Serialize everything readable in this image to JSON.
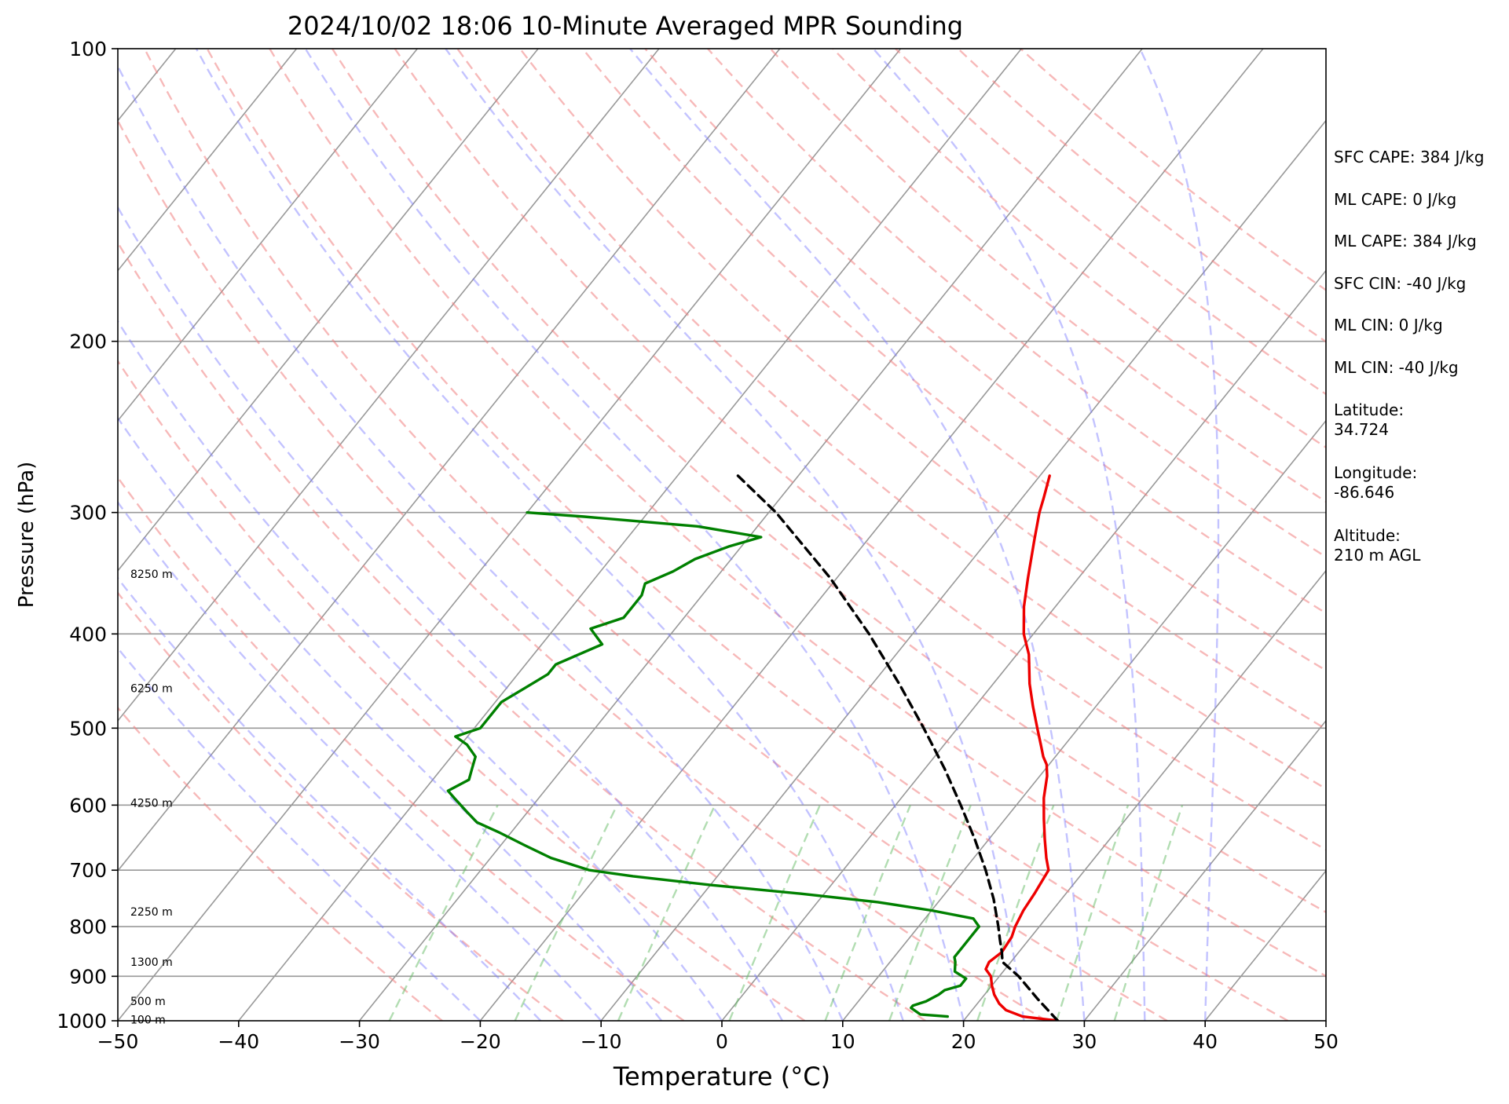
{
  "chart_data": {
    "type": "line",
    "title": "2024/10/02 18:06 10-Minute Averaged MPR Sounding",
    "xlabel": "Temperature (°C)",
    "ylabel": "Pressure (hPa)",
    "xlim": [
      -50,
      50
    ],
    "ylim": [
      1000,
      100
    ],
    "y_scale": "log",
    "x_ticks": [
      -50,
      -40,
      -30,
      -20,
      -10,
      0,
      10,
      20,
      30,
      40,
      50
    ],
    "y_ticks": [
      100,
      200,
      300,
      400,
      500,
      600,
      700,
      800,
      900,
      1000
    ],
    "grid": true,
    "skew_t": true,
    "series": [
      {
        "role": "temperature",
        "color": "#ee0000",
        "points": [
          [
            1000,
            27.8
          ],
          [
            990,
            24.6
          ],
          [
            975,
            22.8
          ],
          [
            960,
            21.8
          ],
          [
            940,
            20.8
          ],
          [
            920,
            20.0
          ],
          [
            900,
            19.3
          ],
          [
            885,
            18.4
          ],
          [
            870,
            18.2
          ],
          [
            850,
            18.6
          ],
          [
            820,
            18.4
          ],
          [
            800,
            18.0
          ],
          [
            770,
            17.6
          ],
          [
            740,
            17.4
          ],
          [
            700,
            17.0
          ],
          [
            680,
            16.0
          ],
          [
            650,
            14.6
          ],
          [
            620,
            13.2
          ],
          [
            590,
            11.8
          ],
          [
            560,
            10.6
          ],
          [
            545,
            9.8
          ],
          [
            535,
            9.0
          ],
          [
            520,
            8.0
          ],
          [
            500,
            6.6
          ],
          [
            475,
            4.8
          ],
          [
            450,
            3.0
          ],
          [
            420,
            1.0
          ],
          [
            400,
            -0.8
          ],
          [
            375,
            -2.6
          ],
          [
            350,
            -4.2
          ],
          [
            320,
            -6.2
          ],
          [
            300,
            -7.6
          ],
          [
            290,
            -8.2
          ],
          [
            275,
            -9.2
          ]
        ]
      },
      {
        "role": "dewpoint",
        "color": "#008000",
        "points": [
          [
            990,
            18.4
          ],
          [
            985,
            16.0
          ],
          [
            970,
            14.8
          ],
          [
            965,
            14.8
          ],
          [
            955,
            15.6
          ],
          [
            940,
            16.2
          ],
          [
            930,
            16.4
          ],
          [
            920,
            17.4
          ],
          [
            905,
            17.4
          ],
          [
            890,
            16.0
          ],
          [
            870,
            15.4
          ],
          [
            860,
            15.0
          ],
          [
            840,
            15.0
          ],
          [
            820,
            15.0
          ],
          [
            800,
            15.0
          ],
          [
            785,
            14.0
          ],
          [
            770,
            10.0
          ],
          [
            755,
            5.0
          ],
          [
            740,
            -2.0
          ],
          [
            725,
            -10.0
          ],
          [
            710,
            -17.0
          ],
          [
            700,
            -21.0
          ],
          [
            680,
            -25.0
          ],
          [
            660,
            -28.0
          ],
          [
            640,
            -31.0
          ],
          [
            625,
            -33.5
          ],
          [
            610,
            -35.0
          ],
          [
            590,
            -37.0
          ],
          [
            580,
            -38.0
          ],
          [
            565,
            -37.0
          ],
          [
            550,
            -37.5
          ],
          [
            535,
            -38.0
          ],
          [
            520,
            -39.5
          ],
          [
            510,
            -41.0
          ],
          [
            500,
            -39.5
          ],
          [
            485,
            -39.5
          ],
          [
            470,
            -39.5
          ],
          [
            455,
            -38.5
          ],
          [
            440,
            -37.5
          ],
          [
            430,
            -37.5
          ],
          [
            410,
            -35.0
          ],
          [
            395,
            -37.0
          ],
          [
            385,
            -35.0
          ],
          [
            375,
            -35.0
          ],
          [
            365,
            -35.0
          ],
          [
            355,
            -35.5
          ],
          [
            345,
            -34.0
          ],
          [
            335,
            -33.0
          ],
          [
            325,
            -31.0
          ],
          [
            318,
            -29.0
          ],
          [
            310,
            -35.0
          ],
          [
            303,
            -45.0
          ],
          [
            300,
            -50.0
          ]
        ]
      },
      {
        "role": "parcel",
        "color": "#000000",
        "dash": true,
        "points": [
          [
            1000,
            27.8
          ],
          [
            950,
            24.7
          ],
          [
            900,
            21.6
          ],
          [
            870,
            19.3
          ],
          [
            850,
            18.6
          ],
          [
            825,
            17.6
          ],
          [
            800,
            16.6
          ],
          [
            750,
            14.4
          ],
          [
            700,
            11.8
          ],
          [
            650,
            8.8
          ],
          [
            600,
            5.4
          ],
          [
            550,
            1.6
          ],
          [
            500,
            -2.8
          ],
          [
            450,
            -7.8
          ],
          [
            400,
            -13.6
          ],
          [
            350,
            -20.6
          ],
          [
            300,
            -29.4
          ],
          [
            275,
            -35.0
          ]
        ]
      }
    ],
    "dry_adiabats_theta_K": [
      250,
      260,
      270,
      280,
      290,
      300,
      310,
      320,
      330,
      340,
      350,
      360,
      370,
      380,
      390,
      400,
      410,
      420,
      430,
      440,
      450
    ],
    "moist_adiabats_start_C": [
      -20,
      -15,
      -10,
      -5,
      0,
      5,
      10,
      15,
      20,
      25,
      30,
      35,
      40
    ],
    "mixing_ratio_lines_gkg": [
      0.4,
      1,
      2,
      4,
      7,
      10,
      16,
      24,
      32
    ],
    "height_labels": [
      {
        "p": 347,
        "text": "8250 m"
      },
      {
        "p": 455,
        "text": "6250 m"
      },
      {
        "p": 597,
        "text": "4250 m"
      },
      {
        "p": 772,
        "text": "2250 m"
      },
      {
        "p": 870,
        "text": "1300 m"
      },
      {
        "p": 955,
        "text": "500 m"
      },
      {
        "p": 997,
        "text": "100 m"
      }
    ]
  },
  "info": [
    {
      "key": "sfc_cape",
      "text": "SFC CAPE: 384 J/kg"
    },
    {
      "key": "ml_cape_1",
      "text": "ML CAPE: 0 J/kg"
    },
    {
      "key": "ml_cape_2",
      "text": "ML CAPE: 384 J/kg"
    },
    {
      "key": "sfc_cin",
      "text": "SFC CIN: -40 J/kg"
    },
    {
      "key": "ml_cin_1",
      "text": "ML CIN: 0 J/kg"
    },
    {
      "key": "ml_cin_2",
      "text": "ML CIN: -40 J/kg"
    },
    {
      "key": "latitude",
      "label": "Latitude:",
      "value": "34.724"
    },
    {
      "key": "longitude",
      "label": "Longitude:",
      "value": "-86.646"
    },
    {
      "key": "altitude",
      "label": "Altitude:",
      "value": "210 m AGL"
    }
  ],
  "colors": {
    "temperature": "#ee0000",
    "dewpoint": "#008000",
    "parcel": "#000000",
    "dry_adiabat": "#f08080",
    "moist_adiabat": "#7b7bff",
    "mixing_ratio": "#66bb66",
    "isotherm": "#999999",
    "isobar": "#999999"
  }
}
